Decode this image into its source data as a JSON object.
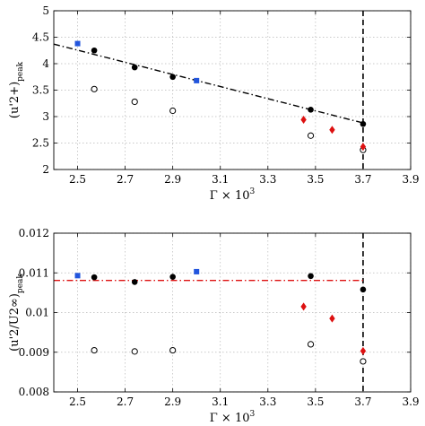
{
  "chart_data": [
    {
      "type": "scatter",
      "xlabel": "Γ × 10",
      "xlabel_sup": "3",
      "ylabel": "(u'2+)",
      "ylabel_sub": "peak",
      "xlim": [
        2.4,
        3.9
      ],
      "ylim": [
        2,
        5
      ],
      "xticks": [
        "2.5",
        "2.7",
        "2.9",
        "3.1",
        "3.3",
        "3.5",
        "3.7",
        "3.9"
      ],
      "yticks": [
        "2",
        "2.5",
        "3",
        "3.5",
        "4",
        "4.5",
        "5"
      ],
      "grid": true,
      "series": [
        {
          "marker": "filled-circle",
          "color": "#000000",
          "x": [
            2.57,
            2.74,
            2.9,
            3.48,
            3.7
          ],
          "y": [
            4.25,
            3.93,
            3.75,
            3.13,
            2.86
          ]
        },
        {
          "marker": "open-circle",
          "color": "#000000",
          "x": [
            2.57,
            2.74,
            2.9,
            3.48,
            3.7
          ],
          "y": [
            3.52,
            3.28,
            3.11,
            2.64,
            2.37
          ]
        },
        {
          "marker": "blue-square",
          "color": "#2255dd",
          "x": [
            2.5,
            3.0
          ],
          "y": [
            4.38,
            3.68
          ]
        },
        {
          "marker": "red-diamond",
          "color": "#dd1111",
          "x": [
            3.45,
            3.57,
            3.7
          ],
          "y": [
            2.94,
            2.75,
            2.43
          ]
        }
      ],
      "fit_line": {
        "style": "dash-dot",
        "color": "#000000",
        "x": [
          2.4,
          3.7
        ],
        "y": [
          4.37,
          2.88
        ]
      },
      "vline": {
        "x": 3.7,
        "style": "dashed",
        "color": "#000000"
      }
    },
    {
      "type": "scatter",
      "xlabel": "Γ × 10",
      "xlabel_sup": "3",
      "ylabel": "(u'2/U2∞)",
      "ylabel_sub": "peak",
      "xlim": [
        2.4,
        3.9
      ],
      "ylim": [
        0.008,
        0.012
      ],
      "xticks": [
        "2.5",
        "2.7",
        "2.9",
        "3.1",
        "3.3",
        "3.5",
        "3.7",
        "3.9"
      ],
      "yticks": [
        "0.008",
        "0.009",
        "0.01",
        "0.011",
        "0.012"
      ],
      "grid": true,
      "series": [
        {
          "marker": "filled-circle",
          "color": "#000000",
          "x": [
            2.57,
            2.74,
            2.9,
            3.48,
            3.7
          ],
          "y": [
            0.01089,
            0.01077,
            0.0109,
            0.01092,
            0.01058
          ]
        },
        {
          "marker": "open-circle",
          "color": "#000000",
          "x": [
            2.57,
            2.74,
            2.9,
            3.48,
            3.7
          ],
          "y": [
            0.00905,
            0.00902,
            0.00905,
            0.0092,
            0.00877
          ]
        },
        {
          "marker": "blue-square",
          "color": "#2255dd",
          "x": [
            2.5,
            3.0
          ],
          "y": [
            0.01093,
            0.01103
          ]
        },
        {
          "marker": "red-diamond",
          "color": "#dd1111",
          "x": [
            3.45,
            3.57,
            3.7
          ],
          "y": [
            0.01015,
            0.00985,
            0.00903
          ]
        }
      ],
      "fit_line": {
        "style": "dash-dot",
        "color": "#dd1111",
        "x": [
          2.4,
          3.7
        ],
        "y": [
          0.01081,
          0.01081
        ]
      },
      "vline": {
        "x": 3.7,
        "style": "dashed",
        "color": "#000000"
      }
    }
  ]
}
